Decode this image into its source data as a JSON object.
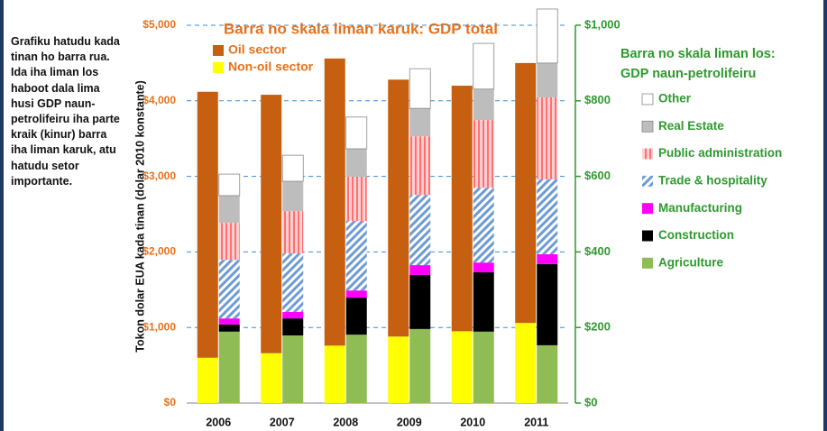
{
  "chart_data": {
    "type": "bar",
    "stacked": true,
    "title": "Barra no skala liman karuk: GDP total",
    "legend2_title": "Barra no skala liman los: GDP naun-petrolifeiru",
    "note": "Grafiku hatudu kada tinan ho barra rua. Ida iha liman los haboot dala lima husi GDP naun-petrolifeiru iha parte kraik (kinur) barra iha liman karuk, atu hatudu setor importante.",
    "ylabel": "Tokon dolar EUA kada tinan (dolar 2010 konstante)",
    "categories": [
      "2006",
      "2007",
      "2008",
      "2009",
      "2010",
      "2011"
    ],
    "ylim": [
      0,
      5000
    ],
    "yticks": [
      {
        "value": 0,
        "label": "$0"
      },
      {
        "value": 1000,
        "label": "$1,000"
      },
      {
        "value": 2000,
        "label": "$2,000"
      },
      {
        "value": 3000,
        "label": "$3,000"
      },
      {
        "value": 4000,
        "label": "$4,000"
      },
      {
        "value": 5000,
        "label": "$5,000"
      }
    ],
    "y2lim": [
      0,
      1000
    ],
    "y2ticks": [
      {
        "value": 0,
        "label": "$0"
      },
      {
        "value": 200,
        "label": "$200"
      },
      {
        "value": 400,
        "label": "$400"
      },
      {
        "value": 600,
        "label": "$600"
      },
      {
        "value": 800,
        "label": "$800"
      },
      {
        "value": 1000,
        "label": "$1,000"
      }
    ],
    "grid": true,
    "series": [
      {
        "name": "Non-oil sector",
        "color": "#ffff00",
        "axis": "y",
        "values": [
          600,
          660,
          760,
          880,
          950,
          1060
        ]
      },
      {
        "name": "Oil sector",
        "color": "#c65f0f",
        "axis": "y",
        "values": [
          3520,
          3420,
          3800,
          3400,
          3250,
          3440
        ]
      },
      {
        "name": "Agriculture",
        "color": "#8fbc55",
        "axis": "y2",
        "values": [
          189,
          179,
          181,
          196,
          189,
          153
        ]
      },
      {
        "name": "Construction",
        "color": "#000000",
        "axis": "y2",
        "values": [
          19,
          45,
          98,
          143,
          157,
          215
        ]
      },
      {
        "name": "Manufacturing",
        "color": "#ff00ff",
        "axis": "y2",
        "values": [
          16,
          17,
          19,
          26,
          26,
          26
        ]
      },
      {
        "name": "Trade & hospitality",
        "color": "#7fa8d8",
        "axis": "y2",
        "values": [
          155,
          155,
          184,
          186,
          198,
          198
        ]
      },
      {
        "name": "Public administration",
        "color": "#ff7c80",
        "axis": "y2",
        "values": [
          98,
          112,
          117,
          155,
          179,
          217
        ]
      },
      {
        "name": "Real Estate",
        "color": "#bdbdbd",
        "axis": "y2",
        "values": [
          72,
          79,
          74,
          74,
          82,
          91
        ]
      },
      {
        "name": "Other",
        "color": "#ffffff",
        "axis": "y2",
        "values": [
          57,
          69,
          84,
          105,
          121,
          143
        ]
      }
    ]
  }
}
